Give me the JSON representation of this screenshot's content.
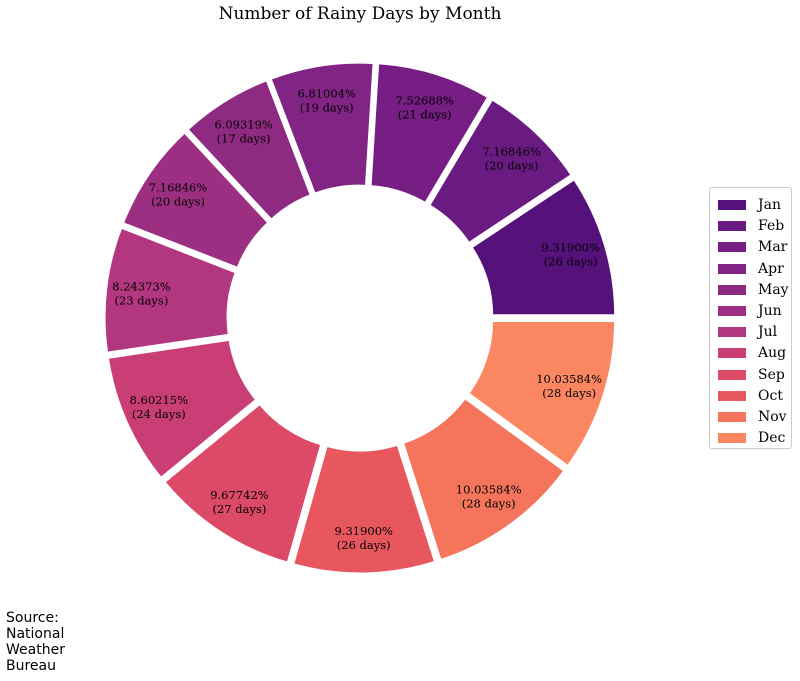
{
  "chart_data": {
    "type": "pie",
    "subtype": "donut",
    "title": "Number of Rainy Days by Month",
    "categories": [
      "Jan",
      "Feb",
      "Mar",
      "Apr",
      "May",
      "Jun",
      "Jul",
      "Aug",
      "Sep",
      "Oct",
      "Nov",
      "Dec"
    ],
    "values": [
      26,
      20,
      21,
      19,
      17,
      20,
      23,
      24,
      27,
      26,
      28,
      28
    ],
    "percent_labels": [
      "9.31900%",
      "7.16846%",
      "7.52688%",
      "6.81004%",
      "6.09319%",
      "7.16846%",
      "8.24373%",
      "8.60215%",
      "9.67742%",
      "9.31900%",
      "10.03584%",
      "10.03584%"
    ],
    "value_labels": [
      "(26 days)",
      "(20 days)",
      "(21 days)",
      "(19 days)",
      "(17 days)",
      "(20 days)",
      "(23 days)",
      "(24 days)",
      "(27 days)",
      "(26 days)",
      "(28 days)",
      "(28 days)"
    ],
    "colors": [
      "#55127a",
      "#6a1b81",
      "#761e83",
      "#812484",
      "#8f2a83",
      "#9d2f82",
      "#b33680",
      "#c93e75",
      "#dc4a67",
      "#e8575e",
      "#f4745c",
      "#fb8662"
    ],
    "legend_position": "right",
    "slice_order": "counterclockwise from 3 o'clock"
  },
  "source_note": {
    "lines": [
      "Source:",
      "National",
      "Weather",
      "Bureau"
    ]
  }
}
